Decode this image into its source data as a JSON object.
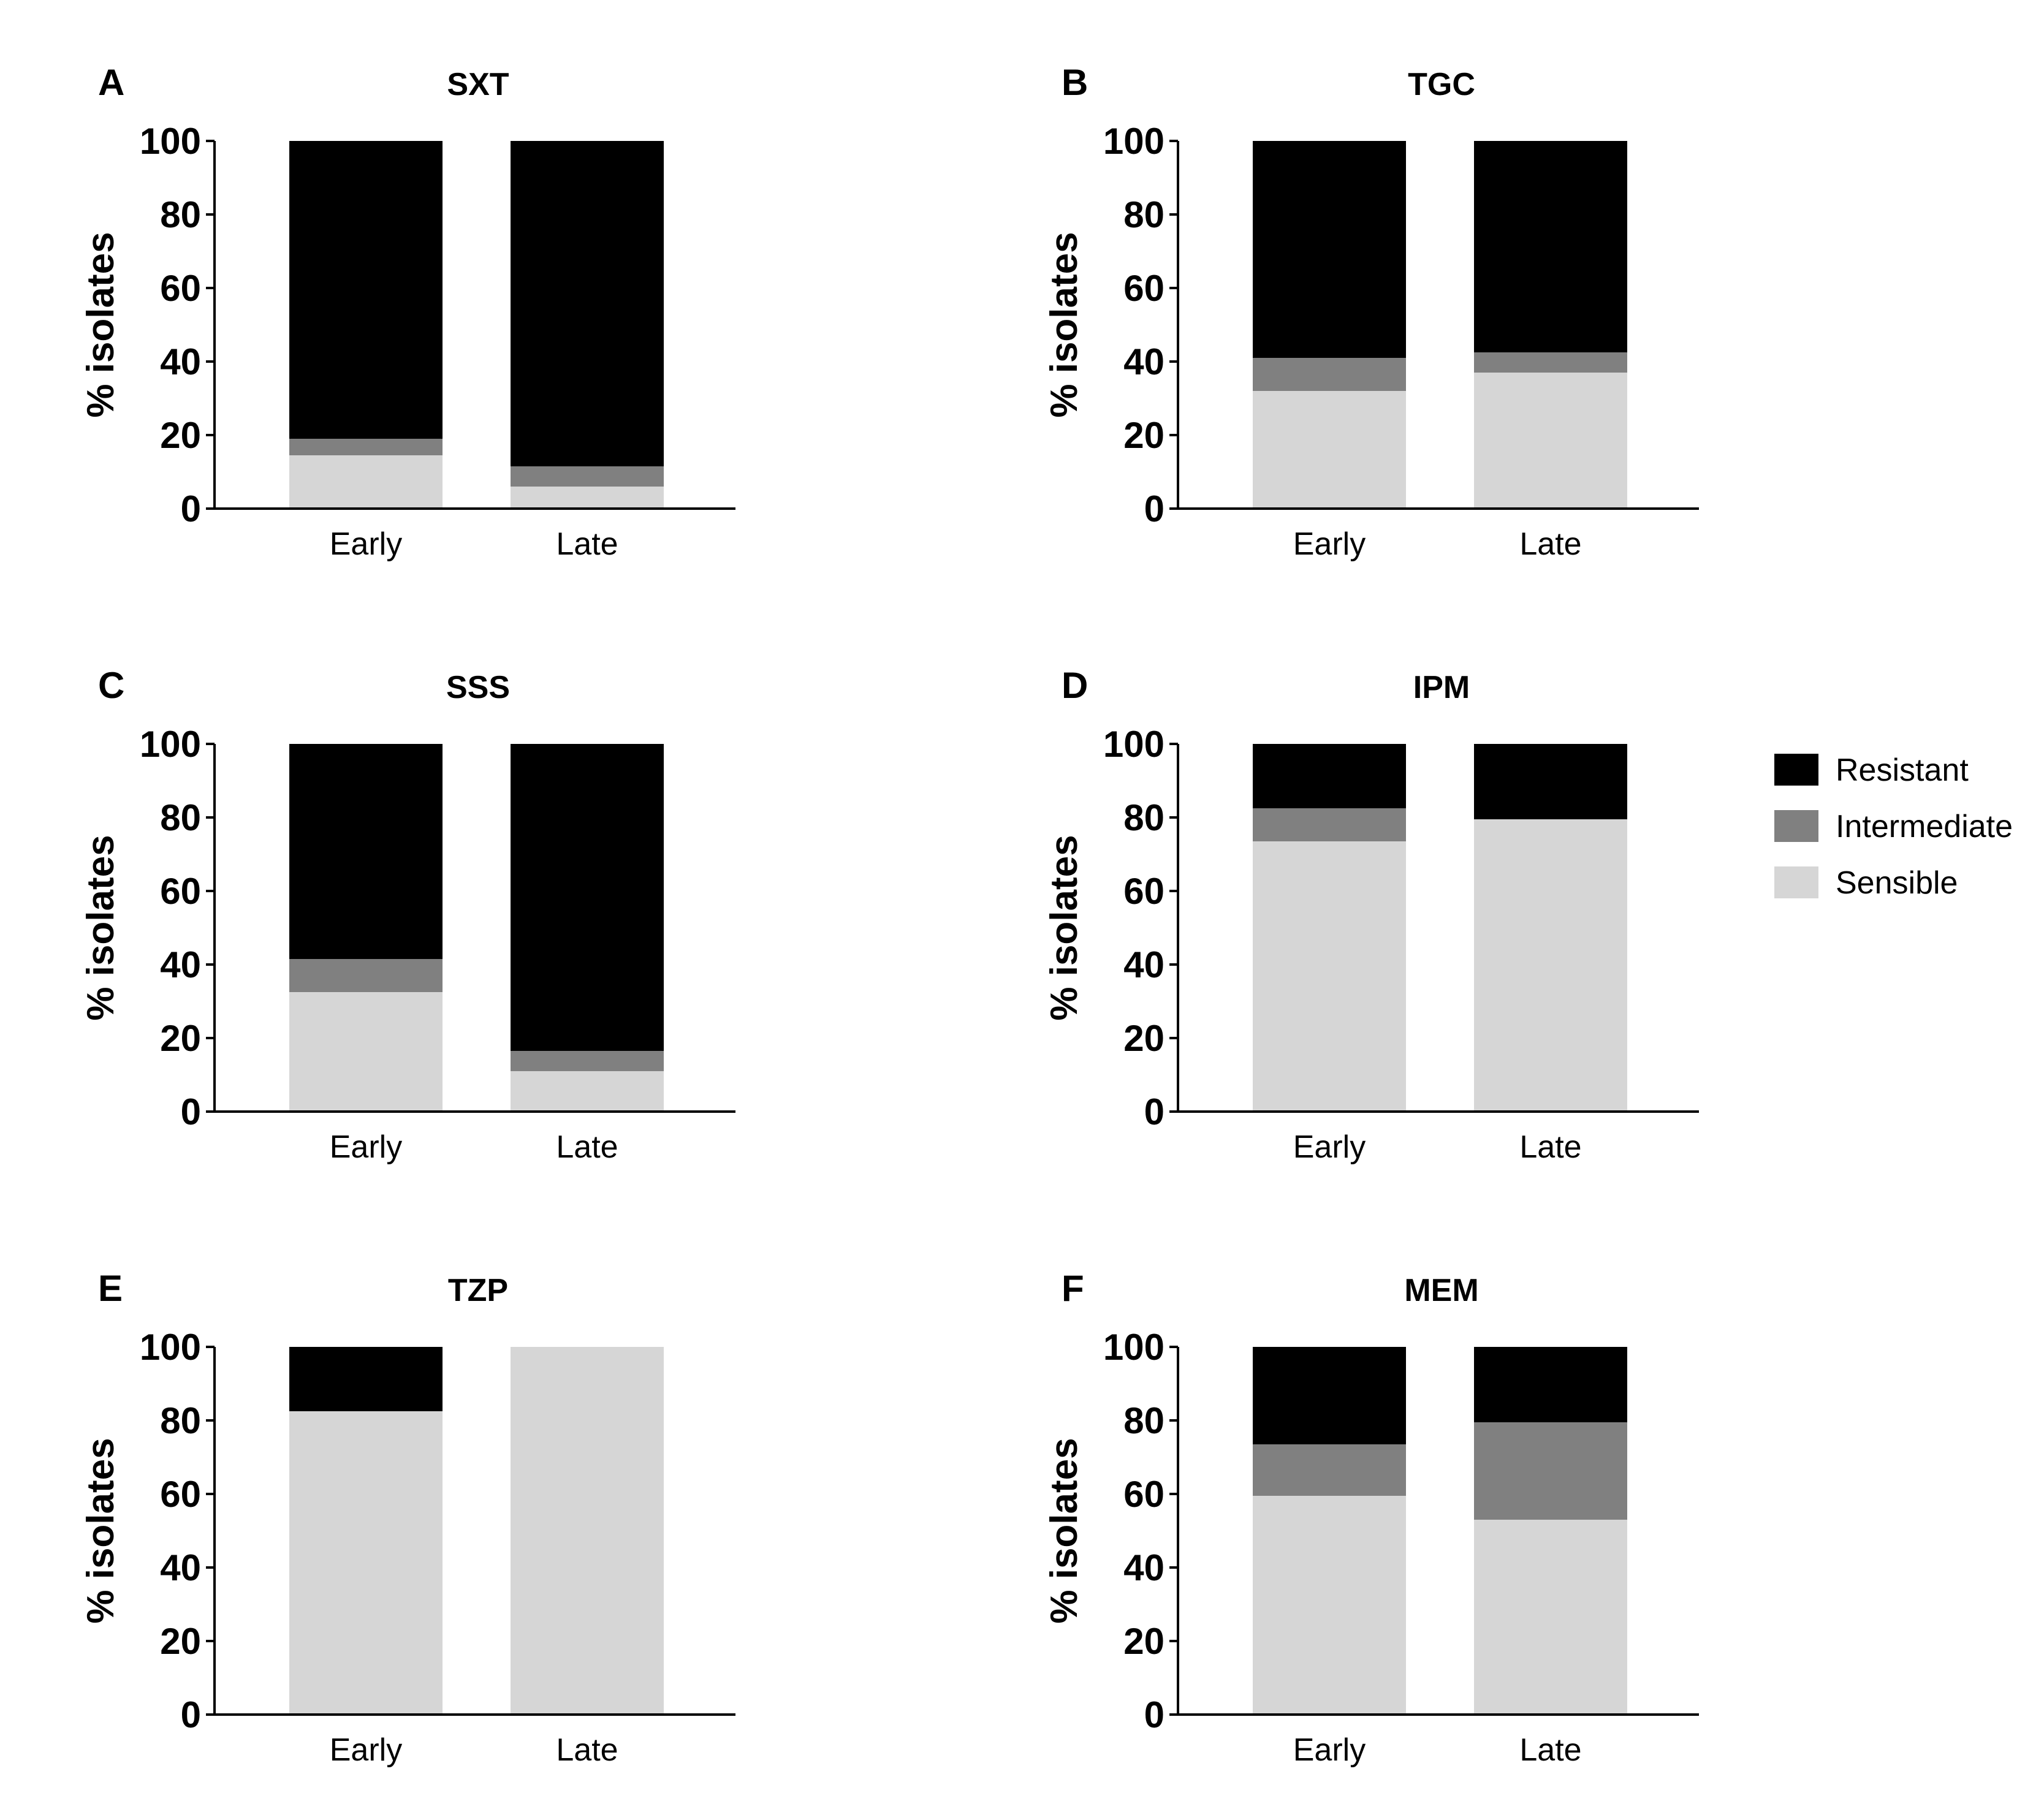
{
  "chart_data": [
    {
      "type": "bar",
      "stacked": true,
      "panel": "A",
      "title": "SXT",
      "categories": [
        "Early",
        "Late"
      ],
      "series": [
        {
          "name": "Sensible",
          "values": [
            14.5,
            6
          ]
        },
        {
          "name": "Intermediate",
          "values": [
            4.5,
            5.5
          ]
        },
        {
          "name": "Resistant",
          "values": [
            81,
            88.5
          ]
        }
      ],
      "xlabel": "",
      "ylabel": "% isolates",
      "ylim": [
        0,
        100
      ],
      "yticks": [
        "0",
        "20",
        "40",
        "60",
        "80",
        "100"
      ]
    },
    {
      "type": "bar",
      "stacked": true,
      "panel": "B",
      "title": "TGC",
      "categories": [
        "Early",
        "Late"
      ],
      "series": [
        {
          "name": "Sensible",
          "values": [
            32,
            37
          ]
        },
        {
          "name": "Intermediate",
          "values": [
            9,
            5.5
          ]
        },
        {
          "name": "Resistant",
          "values": [
            59,
            57.5
          ]
        }
      ],
      "xlabel": "",
      "ylabel": "% isolates",
      "ylim": [
        0,
        100
      ],
      "yticks": [
        "0",
        "20",
        "40",
        "60",
        "80",
        "100"
      ]
    },
    {
      "type": "bar",
      "stacked": true,
      "panel": "C",
      "title": "SSS",
      "categories": [
        "Early",
        "Late"
      ],
      "series": [
        {
          "name": "Sensible",
          "values": [
            32.5,
            11
          ]
        },
        {
          "name": "Intermediate",
          "values": [
            9,
            5.5
          ]
        },
        {
          "name": "Resistant",
          "values": [
            58.5,
            83.5
          ]
        }
      ],
      "xlabel": "",
      "ylabel": "% isolates",
      "ylim": [
        0,
        100
      ],
      "yticks": [
        "0",
        "20",
        "40",
        "60",
        "80",
        "100"
      ]
    },
    {
      "type": "bar",
      "stacked": true,
      "panel": "D",
      "title": "IPM",
      "categories": [
        "Early",
        "Late"
      ],
      "series": [
        {
          "name": "Sensible",
          "values": [
            73.5,
            79.5
          ]
        },
        {
          "name": "Intermediate",
          "values": [
            9,
            0
          ]
        },
        {
          "name": "Resistant",
          "values": [
            17.5,
            20.5
          ]
        }
      ],
      "xlabel": "",
      "ylabel": "% isolates",
      "ylim": [
        0,
        100
      ],
      "yticks": [
        "0",
        "20",
        "40",
        "60",
        "80",
        "100"
      ]
    },
    {
      "type": "bar",
      "stacked": true,
      "panel": "E",
      "title": "TZP",
      "categories": [
        "Early",
        "Late"
      ],
      "series": [
        {
          "name": "Sensible",
          "values": [
            82.5,
            100
          ]
        },
        {
          "name": "Intermediate",
          "values": [
            0,
            0
          ]
        },
        {
          "name": "Resistant",
          "values": [
            17.5,
            0
          ]
        }
      ],
      "xlabel": "",
      "ylabel": "% isolates",
      "ylim": [
        0,
        100
      ],
      "yticks": [
        "0",
        "20",
        "40",
        "60",
        "80",
        "100"
      ]
    },
    {
      "type": "bar",
      "stacked": true,
      "panel": "F",
      "title": "MEM",
      "categories": [
        "Early",
        "Late"
      ],
      "series": [
        {
          "name": "Sensible",
          "values": [
            59.5,
            53
          ]
        },
        {
          "name": "Intermediate",
          "values": [
            14,
            26.5
          ]
        },
        {
          "name": "Resistant",
          "values": [
            26.5,
            20.5
          ]
        }
      ],
      "xlabel": "",
      "ylabel": "% isolates",
      "ylim": [
        0,
        100
      ],
      "yticks": [
        "0",
        "20",
        "40",
        "60",
        "80",
        "100"
      ]
    }
  ],
  "legend": {
    "items": [
      {
        "label": "Resistant",
        "color": "#000000"
      },
      {
        "label": "Intermediate",
        "color": "#808080"
      },
      {
        "label": "Sensible",
        "color": "#d6d6d6"
      }
    ]
  },
  "colors": {
    "Sensible": "#d6d6d6",
    "Intermediate": "#808080",
    "Resistant": "#000000"
  }
}
